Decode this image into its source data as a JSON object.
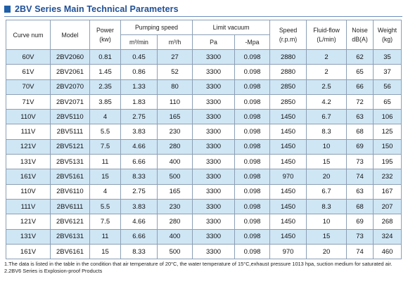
{
  "title": "2BV Series Main Technical Parameters",
  "header": {
    "curve": "Curve num",
    "model": "Model",
    "power": "Power",
    "power_unit": "(kw)",
    "pumping": "Pumping speed",
    "pumping_sub": [
      "m³/min",
      "m³/h"
    ],
    "vacuum": "Limit vacuum",
    "vacuum_sub": [
      "Pa",
      "-Mpa"
    ],
    "speed": "Speed",
    "speed_unit": "(r.p.m)",
    "fluid": "Fluid-flow",
    "fluid_unit": "(L/min)",
    "noise": "Noise",
    "noise_unit": "dB(A)",
    "weight": "Weight",
    "weight_unit": "(kg)"
  },
  "rows": [
    [
      "60V",
      "2BV2060",
      "0.81",
      "0.45",
      "27",
      "3300",
      "0.098",
      "2880",
      "2",
      "62",
      "35"
    ],
    [
      "61V",
      "2BV2061",
      "1.45",
      "0.86",
      "52",
      "3300",
      "0.098",
      "2880",
      "2",
      "65",
      "37"
    ],
    [
      "70V",
      "2BV2070",
      "2.35",
      "1.33",
      "80",
      "3300",
      "0.098",
      "2850",
      "2.5",
      "66",
      "56"
    ],
    [
      "71V",
      "2BV2071",
      "3.85",
      "1.83",
      "110",
      "3300",
      "0.098",
      "2850",
      "4.2",
      "72",
      "65"
    ],
    [
      "110V",
      "2BV5110",
      "4",
      "2.75",
      "165",
      "3300",
      "0.098",
      "1450",
      "6.7",
      "63",
      "106"
    ],
    [
      "111V",
      "2BV5111",
      "5.5",
      "3.83",
      "230",
      "3300",
      "0.098",
      "1450",
      "8.3",
      "68",
      "125"
    ],
    [
      "121V",
      "2BV5121",
      "7.5",
      "4.66",
      "280",
      "3300",
      "0.098",
      "1450",
      "10",
      "69",
      "150"
    ],
    [
      "131V",
      "2BV5131",
      "11",
      "6.66",
      "400",
      "3300",
      "0.098",
      "1450",
      "15",
      "73",
      "195"
    ],
    [
      "161V",
      "2BV5161",
      "15",
      "8.33",
      "500",
      "3300",
      "0.098",
      "970",
      "20",
      "74",
      "232"
    ],
    [
      "110V",
      "2BV6110",
      "4",
      "2.75",
      "165",
      "3300",
      "0.098",
      "1450",
      "6.7",
      "63",
      "167"
    ],
    [
      "111V",
      "2BV6111",
      "5.5",
      "3.83",
      "230",
      "3300",
      "0.098",
      "1450",
      "8.3",
      "68",
      "207"
    ],
    [
      "121V",
      "2BV6121",
      "7.5",
      "4.66",
      "280",
      "3300",
      "0.098",
      "1450",
      "10",
      "69",
      "268"
    ],
    [
      "131V",
      "2BV6131",
      "11",
      "6.66",
      "400",
      "3300",
      "0.098",
      "1450",
      "15",
      "73",
      "324"
    ],
    [
      "161V",
      "2BV6161",
      "15",
      "8.33",
      "500",
      "3300",
      "0.098",
      "970",
      "20",
      "74",
      "460"
    ]
  ],
  "notes": [
    "1.The data is listed in the table in the condition that air temperature of 20°C, the water temperature of 15°C,exhaust pressure 1013 hpa, suction medium for saturated air.",
    "2.2BV6 Series is Explosion-proof Products"
  ],
  "colors": {
    "title": "#1f4f95",
    "accent": "#1f5fa8",
    "row_shade": "#cfe6f5",
    "grid": "#8c9fb5"
  }
}
